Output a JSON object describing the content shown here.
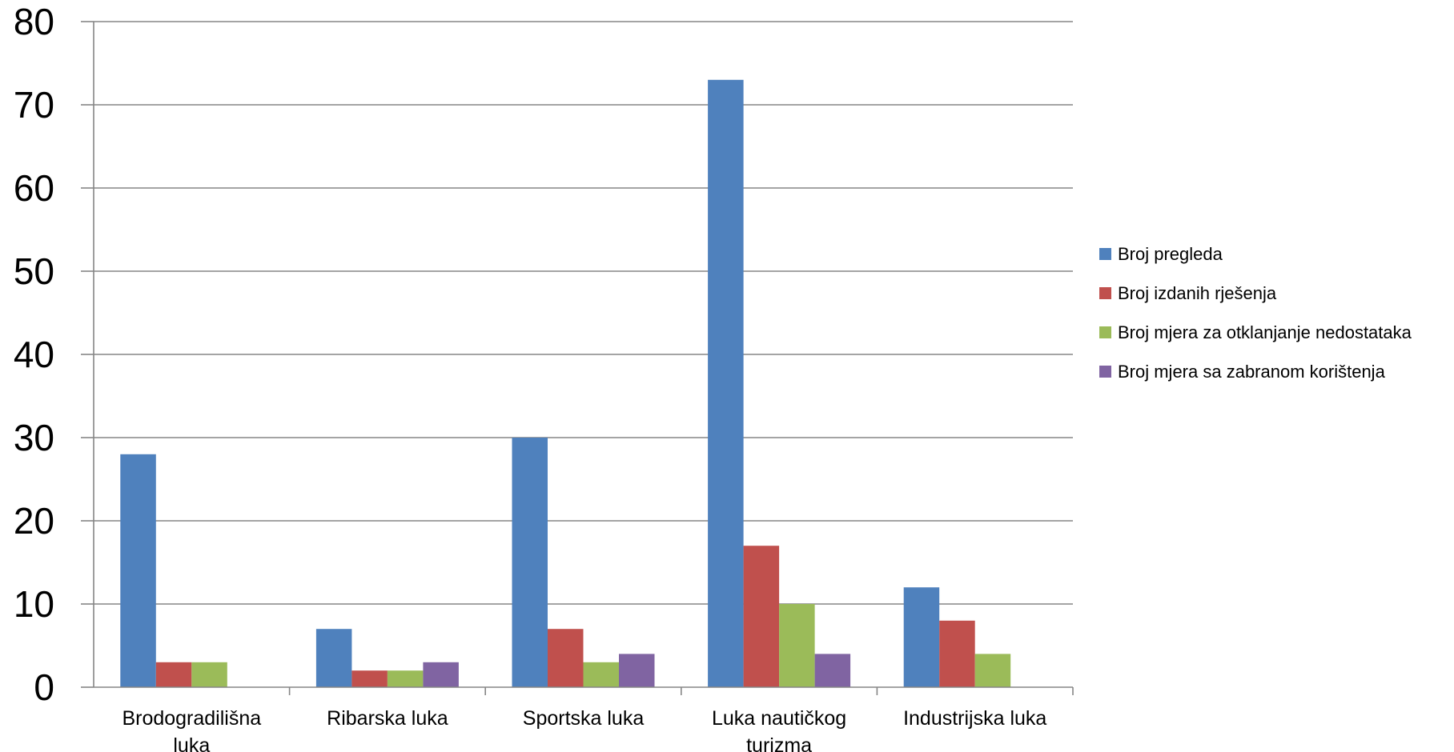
{
  "chart_data": {
    "type": "bar",
    "title": "",
    "xlabel": "",
    "ylabel": "",
    "ylim": [
      0,
      80
    ],
    "yticks": [
      0,
      10,
      20,
      30,
      40,
      50,
      60,
      70,
      80
    ],
    "grid": true,
    "legend_position": "right",
    "categories": [
      [
        "Brodogradilišna",
        "luka"
      ],
      [
        "Ribarska luka"
      ],
      [
        "Sportska luka"
      ],
      [
        "Luka nautičkog",
        "turizma"
      ],
      [
        "Industrijska luka"
      ]
    ],
    "series": [
      {
        "name": "Broj pregleda",
        "color": "#4f81bd",
        "values": [
          28,
          7,
          30,
          73,
          12
        ]
      },
      {
        "name": "Broj izdanih rješenja",
        "color": "#c0504d",
        "values": [
          3,
          2,
          7,
          17,
          8
        ]
      },
      {
        "name": "Broj mjera za otklanjanje nedostataka",
        "color": "#9bbb59",
        "values": [
          3,
          2,
          3,
          10,
          4
        ]
      },
      {
        "name": "Broj mjera sa zabranom korištenja",
        "color": "#8064a2",
        "values": [
          0,
          3,
          4,
          4,
          0
        ]
      }
    ]
  }
}
